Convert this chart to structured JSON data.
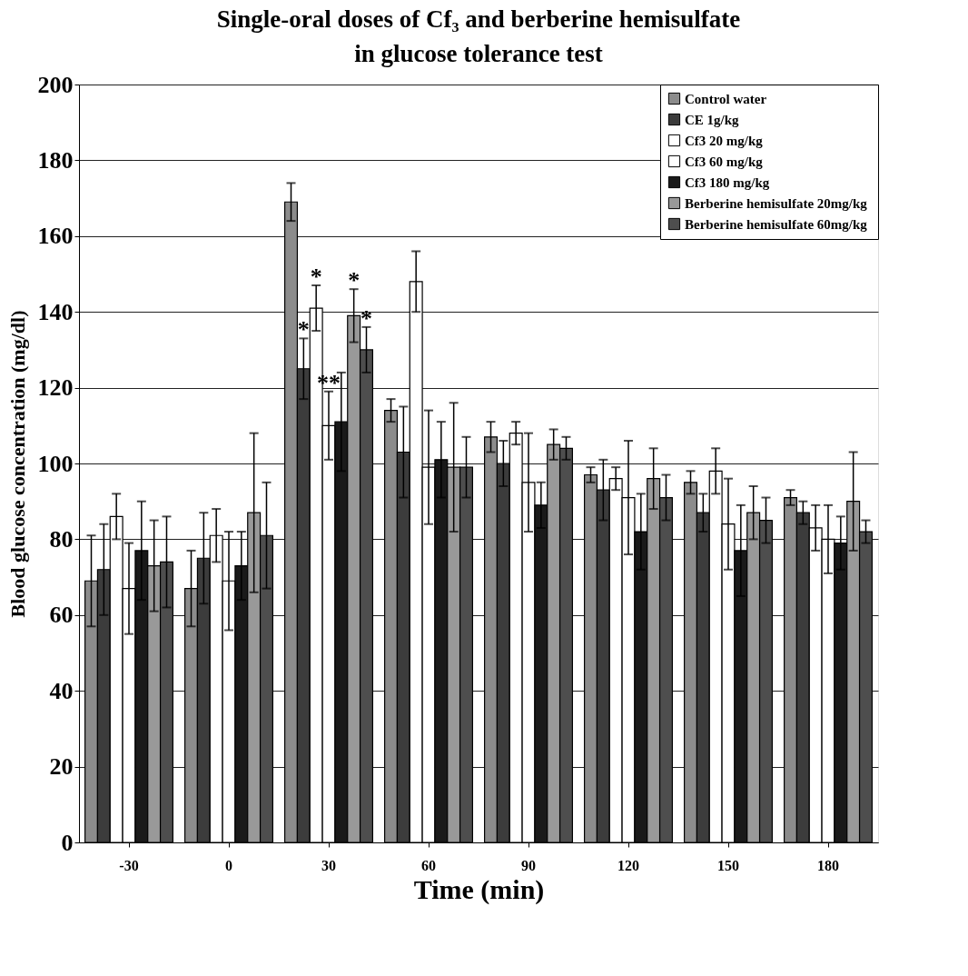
{
  "chart_data": {
    "type": "bar",
    "title": [
      "Single-oral doses of Cf₃ and berberine hemisulfate",
      "in glucose tolerance test"
    ],
    "xlabel": "Time (min)",
    "ylabel": "Blood glucose concentration (mg/dl)",
    "categories": [
      "-30",
      "0",
      "30",
      "60",
      "90",
      "120",
      "150",
      "180"
    ],
    "series": [
      {
        "name": "Control water",
        "color": "#8c8c8c",
        "values": [
          69,
          67,
          169,
          114,
          107,
          97,
          95,
          91
        ],
        "errors": [
          12,
          10,
          5,
          3,
          4,
          2,
          3,
          2
        ]
      },
      {
        "name": "CE 1g/kg",
        "color": "#3c3c3c",
        "values": [
          72,
          75,
          125,
          103,
          100,
          93,
          87,
          87
        ],
        "errors": [
          12,
          12,
          8,
          12,
          6,
          8,
          5,
          3
        ],
        "value_labels": [
          null,
          null,
          "*",
          null,
          null,
          null,
          null,
          null
        ]
      },
      {
        "name": "Cf3  20 mg/kg",
        "color": "#ffffff",
        "values": [
          86,
          81,
          141,
          148,
          108,
          96,
          98,
          83
        ],
        "errors": [
          6,
          7,
          6,
          8,
          3,
          3,
          6,
          6
        ],
        "value_labels": [
          null,
          null,
          "*",
          null,
          null,
          null,
          null,
          null
        ]
      },
      {
        "name": "Cf3  60 mg/kg",
        "color": "#ffffff",
        "values": [
          67,
          69,
          110,
          99,
          95,
          91,
          84,
          80
        ],
        "errors": [
          12,
          13,
          9,
          15,
          13,
          15,
          12,
          9
        ],
        "value_labels": [
          null,
          null,
          "**",
          null,
          null,
          null,
          null,
          null
        ]
      },
      {
        "name": "Cf3  180  mg/kg",
        "color": "#1a1a1a",
        "values": [
          77,
          73,
          111,
          101,
          89,
          82,
          77,
          79
        ],
        "errors": [
          13,
          9,
          13,
          10,
          6,
          10,
          12,
          7
        ]
      },
      {
        "name": "Berberine hemisulfate  20mg/kg",
        "color": "#999999",
        "values": [
          73,
          87,
          139,
          99,
          105,
          96,
          87,
          90
        ],
        "errors": [
          12,
          21,
          7,
          17,
          4,
          8,
          7,
          13
        ],
        "value_labels": [
          null,
          null,
          "*",
          null,
          null,
          null,
          null,
          null
        ]
      },
      {
        "name": "Berberine hemisulfate 60mg/kg",
        "color": "#4e4e4e",
        "values": [
          74,
          81,
          130,
          99,
          104,
          91,
          85,
          82
        ],
        "errors": [
          12,
          14,
          6,
          8,
          3,
          6,
          6,
          3
        ],
        "value_labels": [
          null,
          null,
          "*",
          null,
          null,
          null,
          null,
          null
        ]
      }
    ],
    "ylim": [
      0,
      200
    ],
    "yticks": [
      0,
      20,
      40,
      60,
      80,
      100,
      120,
      140,
      160,
      180,
      200
    ],
    "grid": "y",
    "legend": "top right"
  }
}
